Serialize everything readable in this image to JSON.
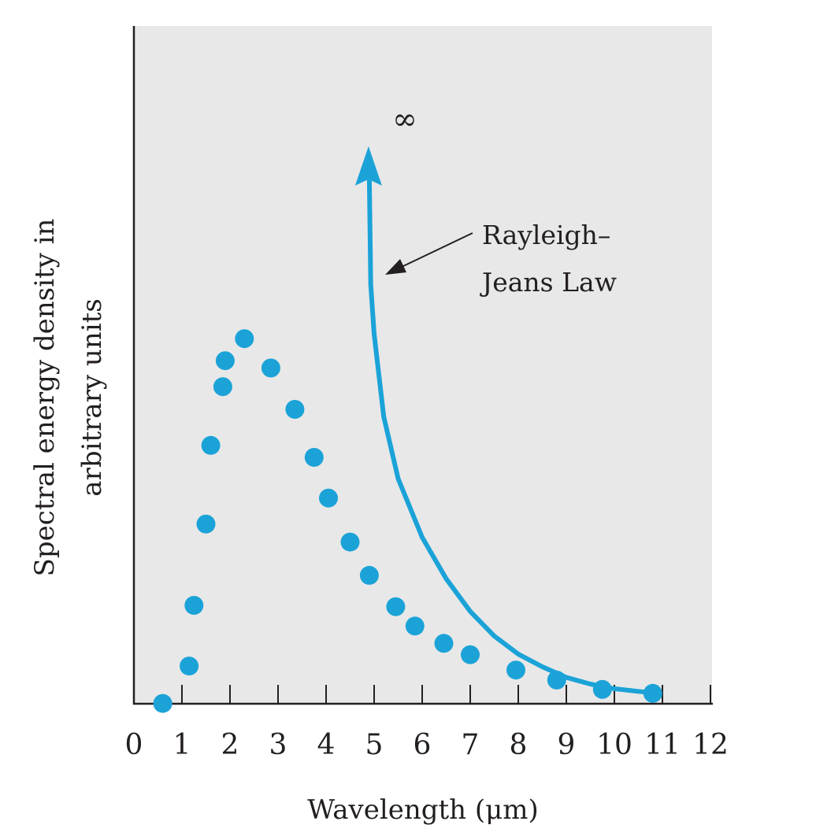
{
  "chart_data": {
    "type": "scatter",
    "title": "",
    "xlabel": "Wavelength (μm)",
    "ylabel_lines": [
      "Spectral energy density in",
      "arbitrary units"
    ],
    "xlim": [
      0,
      12
    ],
    "x_ticks": [
      0,
      1,
      2,
      3,
      4,
      5,
      6,
      7,
      8,
      9,
      10,
      11,
      12
    ],
    "x_tick_labels": [
      "0",
      "1",
      "2",
      "3",
      "4",
      "5",
      "6",
      "7",
      "8",
      "9",
      "10",
      "11",
      "12"
    ],
    "y_ticks_shown": false,
    "y_range_arbitrary": [
      0,
      100
    ],
    "grid": false,
    "colors": {
      "data": "#1ba3d8",
      "background": "#e8e8e8",
      "axis": "#231f20"
    },
    "series": [
      {
        "kind": "points",
        "x": [
          0.6,
          1.15,
          1.25,
          1.5,
          1.6,
          1.85,
          1.9,
          2.3,
          2.85,
          3.35,
          3.75,
          4.05,
          4.5,
          4.9,
          5.45,
          5.85,
          6.45,
          7.0,
          7.95,
          8.8,
          9.75,
          10.8
        ],
        "y": [
          -1.6,
          4.0,
          13.1,
          25.3,
          37.1,
          45.9,
          49.8,
          53.1,
          48.7,
          42.5,
          35.3,
          29.2,
          22.6,
          17.6,
          12.9,
          10.0,
          7.4,
          5.7,
          3.4,
          1.9,
          0.5,
          -0.1
        ]
      },
      {
        "kind": "curve",
        "x": [
          4.9,
          4.93,
          5.0,
          5.2,
          5.5,
          6.0,
          6.5,
          7.0,
          7.5,
          8.0,
          8.5,
          9.0,
          9.5,
          10.0,
          10.5,
          10.8
        ],
        "y": [
          77.0,
          61.2,
          53.8,
          41.4,
          32.1,
          23.3,
          17.1,
          12.2,
          8.5,
          5.8,
          3.9,
          2.3,
          1.3,
          0.6,
          0.2,
          0.0
        ]
      }
    ],
    "annotations": [
      {
        "text_lines": [
          "Rayleigh–",
          "Jeans Law"
        ]
      },
      {
        "text": "∞"
      }
    ]
  }
}
